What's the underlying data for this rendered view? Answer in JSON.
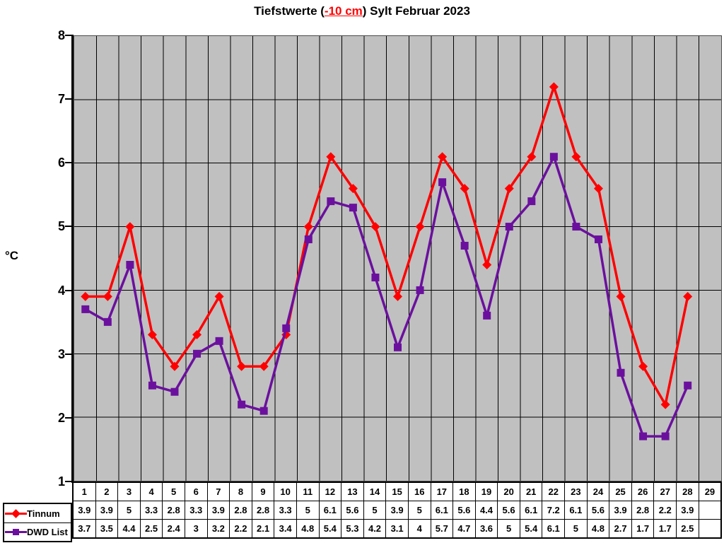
{
  "chart_data": {
    "type": "line",
    "title": "Tiefstwerte (-10 cm) Sylt Februar 2023",
    "title_parts": {
      "pre": "Tiefstwerte (",
      "highlight": "-10 cm",
      "post": ") Sylt Februar 2023"
    },
    "highlight_color": "#FF0000",
    "ylabel": "°C",
    "ylim": [
      1,
      8
    ],
    "y_ticks": [
      8,
      7,
      6,
      5,
      4,
      3,
      2,
      1
    ],
    "x_categories": [
      "1",
      "2",
      "3",
      "4",
      "5",
      "6",
      "7",
      "8",
      "9",
      "10",
      "11",
      "12",
      "13",
      "14",
      "15",
      "16",
      "17",
      "18",
      "19",
      "20",
      "21",
      "22",
      "23",
      "24",
      "25",
      "26",
      "27",
      "28",
      "29"
    ],
    "grid": "on",
    "grid_color": "#000000",
    "plot_background": "#C0C0C0",
    "legend_position": "bottom-left",
    "series": [
      {
        "name": "Tinnum",
        "color": "#FF0000",
        "marker": "diamond",
        "values": [
          3.9,
          3.9,
          5,
          3.3,
          2.8,
          3.3,
          3.9,
          2.8,
          2.8,
          3.3,
          5,
          6.1,
          5.6,
          5,
          3.9,
          5,
          6.1,
          5.6,
          4.4,
          5.6,
          6.1,
          7.2,
          6.1,
          5.6,
          3.9,
          2.8,
          2.2,
          3.9
        ]
      },
      {
        "name": "DWD List",
        "color": "#6B109E",
        "marker": "square",
        "values": [
          3.7,
          3.5,
          4.4,
          2.5,
          2.4,
          3,
          3.2,
          2.2,
          2.1,
          3.4,
          4.8,
          5.4,
          5.3,
          4.2,
          3.1,
          4,
          5.7,
          4.7,
          3.6,
          5,
          5.4,
          6.1,
          5,
          4.8,
          2.7,
          1.7,
          1.7,
          2.5
        ]
      }
    ]
  }
}
